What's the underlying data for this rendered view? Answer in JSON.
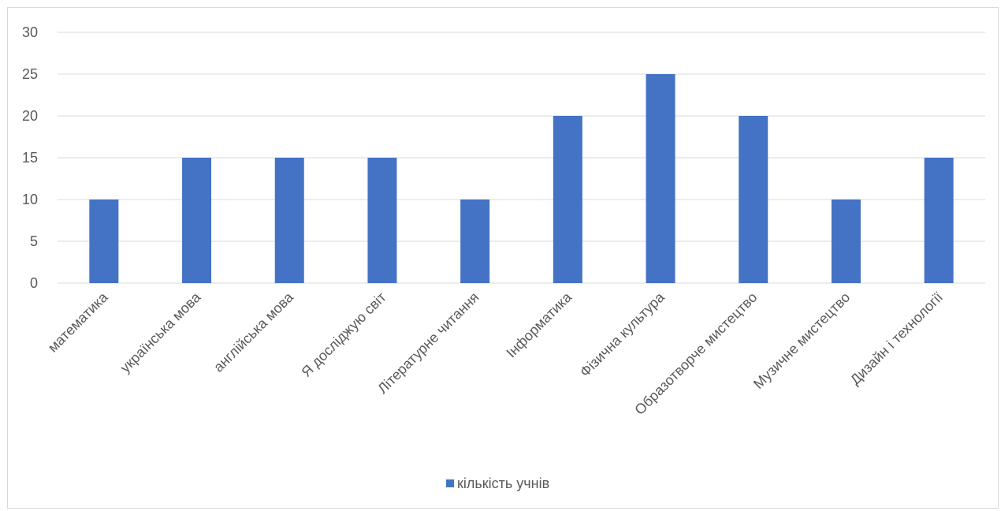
{
  "chart_data": {
    "type": "bar",
    "categories": [
      "математика",
      "українська мова",
      "англійська мова",
      "Я досліджую світ",
      "Літературне читання",
      "Інформатика",
      "Фізична культура",
      "Образотворче мистецтво",
      "Музичне мистецтво",
      "Дизайн і технології"
    ],
    "series": [
      {
        "name": "кількість учнів",
        "values": [
          10,
          15,
          15,
          15,
          10,
          20,
          25,
          20,
          10,
          15
        ]
      }
    ],
    "ylim": [
      0,
      30
    ],
    "yticks": [
      "0",
      "5",
      "10",
      "15",
      "20",
      "25",
      "30"
    ],
    "grid": true,
    "legend_position": "bottom",
    "colors": {
      "bar": "#4472C4",
      "grid": "#d9d9d9",
      "text": "#595959"
    }
  }
}
